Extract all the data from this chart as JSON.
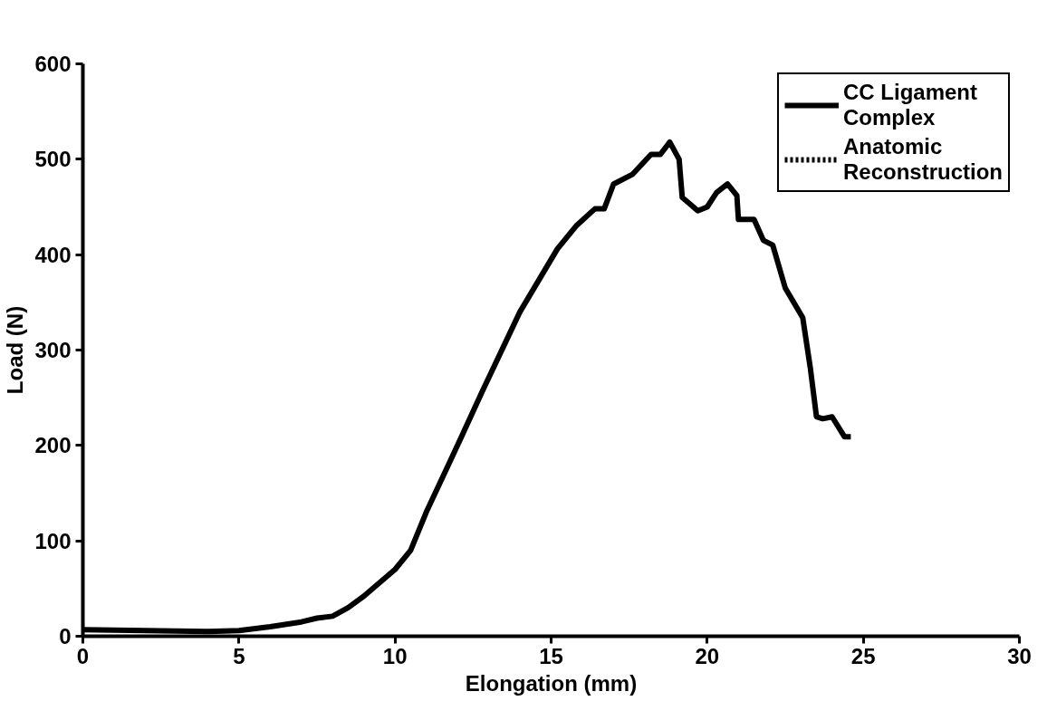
{
  "chart_data": {
    "type": "line",
    "xlabel": "Elongation (mm)",
    "ylabel": "Load (N)",
    "xlim": [
      0,
      30
    ],
    "ylim": [
      0,
      600
    ],
    "xticks": [
      0,
      5,
      10,
      15,
      20,
      25,
      30
    ],
    "yticks": [
      0,
      100,
      200,
      300,
      400,
      500,
      600
    ],
    "grid": false,
    "legend": "top right",
    "series": [
      {
        "name": "CC Ligament Complex",
        "color": "#000000",
        "line_style": "solid",
        "x": [
          0,
          2,
          4,
          5,
          6,
          7,
          7.5,
          8,
          8.5,
          9,
          10,
          10.5,
          11,
          12,
          12.8,
          14,
          15.2,
          15.8,
          16.4,
          16.7,
          17.0,
          17.6,
          18.2,
          18.5,
          18.8,
          19.1,
          19.2,
          19.7,
          20.0,
          20.3,
          20.65,
          20.95,
          21.0,
          21.5,
          21.8,
          22.1,
          22.5,
          23.06,
          23.3,
          23.5,
          23.7,
          24.0,
          24.4,
          24.6
        ],
        "values": [
          7,
          6,
          5,
          6,
          10,
          15,
          19,
          21,
          30,
          42,
          70,
          90,
          130,
          200,
          257,
          340,
          406,
          430,
          448,
          448,
          474,
          484,
          505,
          505,
          518,
          500,
          460,
          446,
          450,
          465,
          474,
          462,
          437,
          437,
          415,
          410,
          365,
          334,
          282,
          230,
          228,
          230,
          209,
          209
        ]
      },
      {
        "name": "Anatomic Reconstruction",
        "color": "#000000",
        "line_style": "dotted"
      }
    ]
  }
}
